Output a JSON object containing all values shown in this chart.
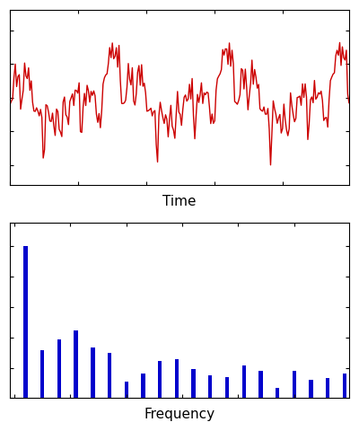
{
  "seed": 12345,
  "n_time": 256,
  "signal_color": "#cc0000",
  "spectrum_color": "#0000cc",
  "time_xlabel": "Time",
  "freq_xlabel": "Frequency",
  "background_color": "#ffffff",
  "line_width": 1.0,
  "fig_width": 4.0,
  "fig_height": 4.8,
  "dpi": 100,
  "tick_direction": "in",
  "font_size": 11
}
